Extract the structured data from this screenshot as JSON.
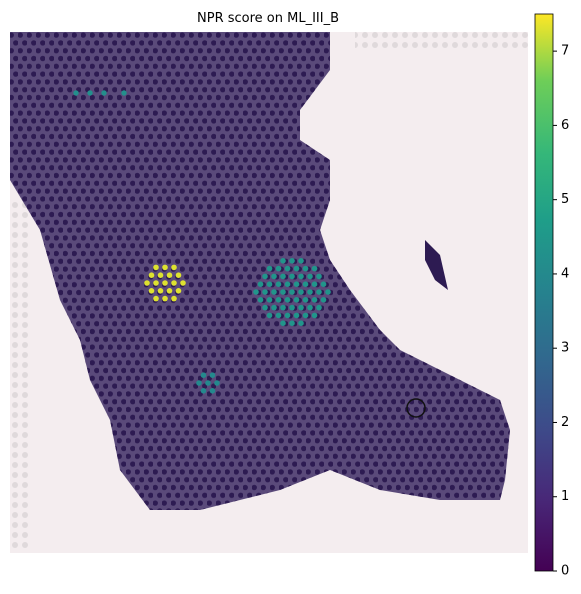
{
  "chart_data": {
    "type": "spatial",
    "title": "NPR score on ML_III_B",
    "colormap": "viridis",
    "clim": [
      0,
      7.5
    ],
    "cticks": [
      0,
      1,
      2,
      3,
      4,
      5,
      6,
      7
    ],
    "clusters": [
      {
        "value": 7.3
      },
      {
        "value": 4.4
      },
      {
        "value": 4.0
      },
      {
        "value": 4.2
      }
    ]
  }
}
